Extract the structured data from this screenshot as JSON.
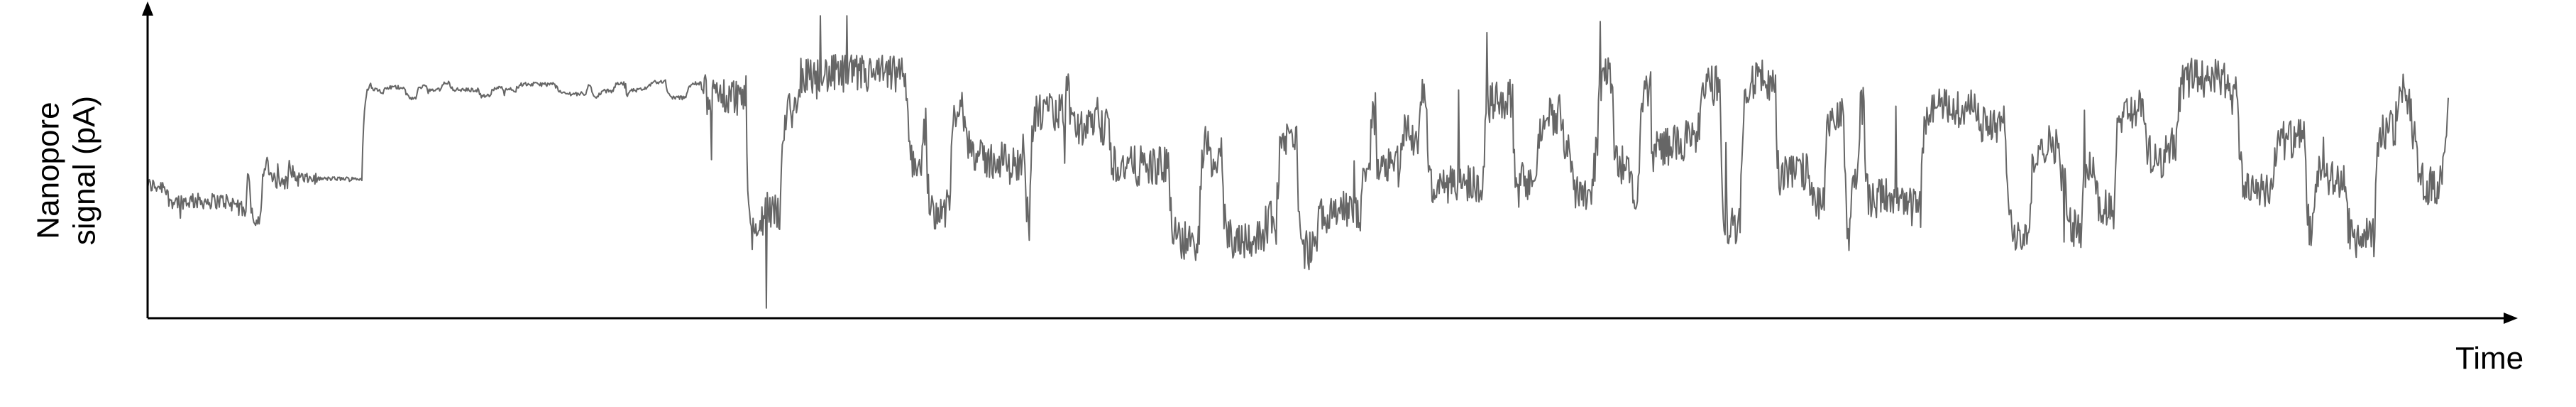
{
  "chart_data": {
    "type": "line",
    "title": "",
    "xlabel": "Time",
    "ylabel_lines": [
      "Nanopore",
      "signal (pA)"
    ],
    "x_ticks": [],
    "y_ticks": [],
    "grid": false,
    "legend": "none",
    "line_color": "#666666",
    "axis_color": "#000000",
    "xlim": [
      0,
      1
    ],
    "ylim": [
      0,
      1
    ],
    "series": [
      {
        "name": "",
        "sample_count": 2600,
        "x": [
          0,
          1
        ],
        "segments": [
          {
            "x": [
              0.0,
              0.068
            ],
            "mean": 0.42,
            "spread": 0.12
          },
          {
            "x": [
              0.068,
              0.074
            ],
            "mean": 0.12,
            "spread": 0.08
          },
          {
            "x": [
              0.074,
              0.242
            ],
            "mean": 0.74,
            "spread": 0.03
          },
          {
            "x": [
              0.242,
              1.0
            ],
            "mean": 0.5,
            "spread": 0.3
          }
        ]
      }
    ]
  }
}
